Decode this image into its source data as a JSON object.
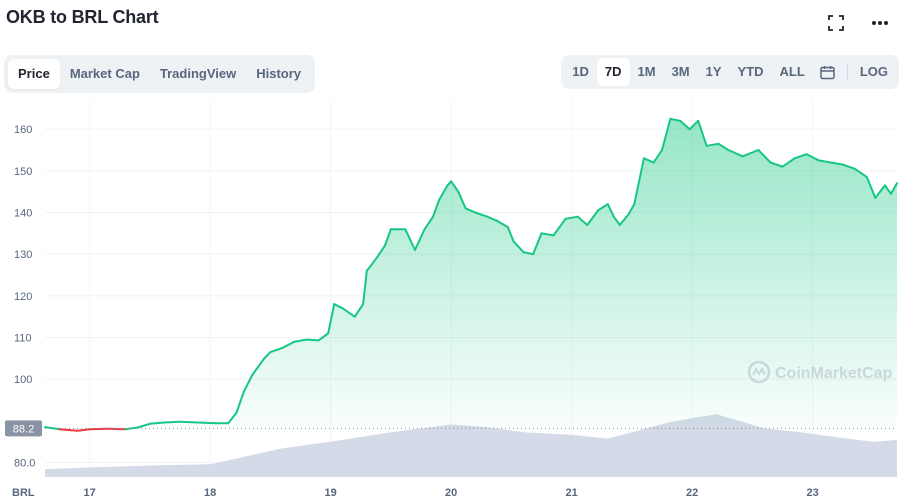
{
  "header": {
    "title": "OKB to BRL Chart",
    "fullscreen_icon": "fullscreen-icon",
    "more_icon": "more-horizontal-icon"
  },
  "tabs": [
    {
      "label": "Price",
      "active": true
    },
    {
      "label": "Market Cap",
      "active": false
    },
    {
      "label": "TradingView",
      "active": false
    },
    {
      "label": "History",
      "active": false
    }
  ],
  "ranges": [
    {
      "label": "1D",
      "active": false
    },
    {
      "label": "7D",
      "active": true
    },
    {
      "label": "1M",
      "active": false
    },
    {
      "label": "3M",
      "active": false
    },
    {
      "label": "1Y",
      "active": false
    },
    {
      "label": "YTD",
      "active": false
    },
    {
      "label": "ALL",
      "active": false
    }
  ],
  "calendar_icon": "calendar-icon",
  "log_label": "LOG",
  "watermark": "CoinMarketCap",
  "colors": {
    "up": "#16c784",
    "down": "#ea3943",
    "volume": "#cfd6e4",
    "baseline": "#8a93a3"
  },
  "chart_data": {
    "type": "line",
    "currency_label": "BRL",
    "open_price_label": "88.2",
    "y_ticks": [
      "160",
      "150",
      "140",
      "130",
      "120",
      "110",
      "100",
      "80.0"
    ],
    "y_range": [
      77,
      167
    ],
    "x_ticks": [
      "17",
      "18",
      "19",
      "20",
      "21",
      "22",
      "23"
    ],
    "x_tick_values": [
      17,
      18,
      19,
      20,
      21,
      22,
      23
    ],
    "x_range": [
      16.63,
      23.7
    ],
    "baseline": 88.2,
    "series": [
      {
        "x": [
          16.63,
          16.75,
          16.9,
          17.0,
          17.15,
          17.3,
          17.4,
          17.5,
          17.62,
          17.75,
          17.9,
          18.05,
          18.15,
          18.22,
          18.28,
          18.35,
          18.45,
          18.5,
          18.6,
          18.7,
          18.8,
          18.9,
          18.98,
          19.03,
          19.1,
          19.2,
          19.27,
          19.3,
          19.38,
          19.45,
          19.5,
          19.62,
          19.7,
          19.78,
          19.85,
          19.9,
          19.97,
          20.0,
          20.06,
          20.12,
          20.2,
          20.3,
          20.38,
          20.47,
          20.52,
          20.6,
          20.68,
          20.75,
          20.85,
          20.95,
          21.05,
          21.13,
          21.22,
          21.3,
          21.35,
          21.4,
          21.47,
          21.52,
          21.6,
          21.68,
          21.75,
          21.82,
          21.9,
          21.98,
          22.05,
          22.12,
          22.22,
          22.3,
          22.42,
          22.55,
          22.65,
          22.75,
          22.85,
          22.95,
          23.05,
          23.15,
          23.25,
          23.35,
          23.45,
          23.52,
          23.6,
          23.65,
          23.7
        ],
        "y": [
          88.5,
          88.0,
          87.6,
          88.0,
          88.1,
          88.0,
          88.4,
          89.3,
          89.6,
          89.8,
          89.6,
          89.4,
          89.4,
          92.0,
          97.0,
          101.0,
          105.0,
          106.5,
          107.5,
          109.0,
          109.5,
          109.3,
          111.0,
          118.0,
          117.0,
          115.0,
          118.0,
          126.0,
          129.0,
          132.0,
          136.0,
          136.0,
          131.0,
          136.0,
          139.0,
          143.0,
          146.5,
          147.5,
          145.0,
          141.0,
          140.0,
          139.0,
          138.0,
          136.5,
          133.0,
          130.5,
          130.0,
          135.0,
          134.5,
          138.5,
          139.0,
          137.0,
          140.5,
          142.0,
          139.0,
          137.0,
          139.5,
          142.0,
          153.0,
          152.0,
          155.0,
          162.5,
          162.0,
          160.0,
          162.0,
          156.0,
          156.5,
          155.0,
          153.5,
          155.0,
          152.0,
          151.0,
          153.0,
          154.0,
          152.5,
          152.0,
          151.5,
          150.5,
          148.5,
          143.5,
          146.5,
          144.5,
          147.0
        ]
      }
    ],
    "volume": {
      "x": [
        16.63,
        17.0,
        17.5,
        18.0,
        18.25,
        18.6,
        19.0,
        19.5,
        20.0,
        20.3,
        20.6,
        21.0,
        21.3,
        21.6,
        21.8,
        22.0,
        22.2,
        22.35,
        22.6,
        22.9,
        23.2,
        23.5,
        23.7
      ],
      "v": [
        0.12,
        0.15,
        0.18,
        0.2,
        0.3,
        0.45,
        0.55,
        0.7,
        0.82,
        0.78,
        0.7,
        0.66,
        0.6,
        0.75,
        0.85,
        0.92,
        0.98,
        0.9,
        0.76,
        0.7,
        0.62,
        0.55,
        0.58
      ]
    }
  }
}
